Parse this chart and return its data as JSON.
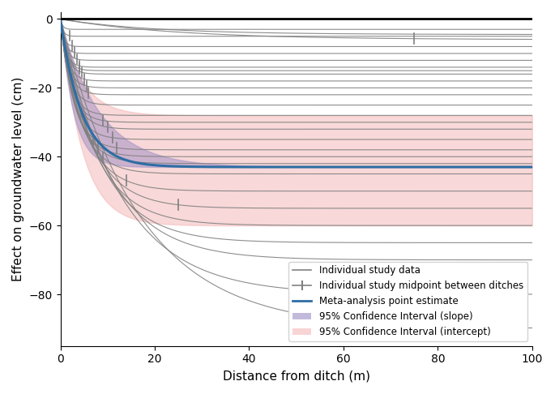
{
  "title": "",
  "xlabel": "Distance from ditch (m)",
  "ylabel": "Effect on groundwater level (cm)",
  "xlim": [
    0,
    100
  ],
  "ylim": [
    -95,
    2
  ],
  "yticks": [
    0,
    -20,
    -40,
    -60,
    -80
  ],
  "xticks": [
    0,
    20,
    40,
    60,
    80,
    100
  ],
  "meta_analysis_color": "#2e6da4",
  "ci_slope_color": "#9b8cc4",
  "ci_intercept_color": "#f4b8b8",
  "individual_color": "#808080",
  "hline_y": 0,
  "hline_color": "black",
  "hline_lw": 2.0,
  "legend_entries": [
    "Individual study data",
    "Individual study midpoint between ditches",
    "Meta-analysis point estimate",
    "95% Confidence Interval (slope)",
    "95% Confidence Interval (intercept)"
  ],
  "individual_studies": [
    {
      "a": -5.0,
      "k": 1.8,
      "midpoint": 2.0
    },
    {
      "a": -8.0,
      "k": 1.5,
      "midpoint": 2.5
    },
    {
      "a": -10.0,
      "k": 1.2,
      "midpoint": 3.0
    },
    {
      "a": -12.0,
      "k": 1.0,
      "midpoint": 3.5
    },
    {
      "a": -14.0,
      "k": 0.9,
      "midpoint": 4.0
    },
    {
      "a": -15.0,
      "k": 0.8,
      "midpoint": 4.0
    },
    {
      "a": -16.0,
      "k": 0.75,
      "midpoint": 4.5
    },
    {
      "a": -18.0,
      "k": 0.7,
      "midpoint": 5.0
    },
    {
      "a": -20.0,
      "k": 0.65,
      "midpoint": 5.5
    },
    {
      "a": -22.0,
      "k": 0.6,
      "midpoint": 6.0
    },
    {
      "a": -25.0,
      "k": 0.55,
      "midpoint": null
    },
    {
      "a": -28.0,
      "k": 0.5,
      "midpoint": null
    },
    {
      "a": -30.0,
      "k": 0.45,
      "midpoint": 9.0
    },
    {
      "a": -32.0,
      "k": 0.4,
      "midpoint": 10.0
    },
    {
      "a": -35.0,
      "k": 0.38,
      "midpoint": 11.0
    },
    {
      "a": -38.0,
      "k": 0.35,
      "midpoint": 12.0
    },
    {
      "a": -40.0,
      "k": 0.32,
      "midpoint": 7.0
    },
    {
      "a": -42.0,
      "k": 0.28,
      "midpoint": 8.0
    },
    {
      "a": -45.0,
      "k": 0.25,
      "midpoint": 9.0
    },
    {
      "a": -50.0,
      "k": 0.2,
      "midpoint": 14.0
    },
    {
      "a": -55.0,
      "k": 0.16,
      "midpoint": 25.0
    },
    {
      "a": -60.0,
      "k": 0.14,
      "midpoint": null
    },
    {
      "a": -65.0,
      "k": 0.12,
      "midpoint": null
    },
    {
      "a": -70.0,
      "k": 0.1,
      "midpoint": null
    },
    {
      "a": -80.0,
      "k": 0.08,
      "midpoint": null
    },
    {
      "a": -90.0,
      "k": 0.06,
      "midpoint": null
    },
    {
      "a": -3.0,
      "k": 2.0,
      "midpoint": null
    },
    {
      "a": -6.0,
      "k": 0.04,
      "midpoint": 75.0
    },
    {
      "a": -4.5,
      "k": 0.05,
      "midpoint": null
    }
  ],
  "meta_a": -43.0,
  "meta_k": 0.22,
  "ci_slope_upper_k": 0.36,
  "ci_slope_lower_k": 0.12,
  "ci_intercept_upper_a": -28.0,
  "ci_intercept_lower_a": -60.0
}
